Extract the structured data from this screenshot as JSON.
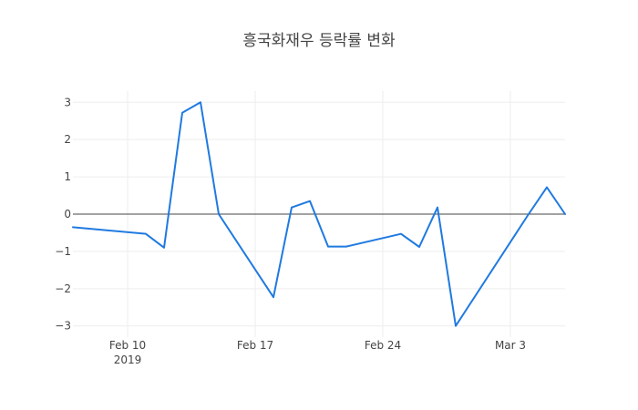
{
  "chart_data": {
    "type": "line",
    "title": "흥국화재우 등락률 변화",
    "xlabel": "",
    "ylabel": "",
    "x": [
      "2019-02-07",
      "2019-02-11",
      "2019-02-12",
      "2019-02-13",
      "2019-02-14",
      "2019-02-15",
      "2019-02-18",
      "2019-02-19",
      "2019-02-20",
      "2019-02-21",
      "2019-02-22",
      "2019-02-25",
      "2019-02-26",
      "2019-02-27",
      "2019-02-28",
      "2019-03-04",
      "2019-03-05",
      "2019-03-06"
    ],
    "series": [
      {
        "values": [
          -0.35,
          -0.53,
          -0.9,
          2.72,
          3.0,
          0.0,
          -2.23,
          0.18,
          0.35,
          -0.87,
          -0.87,
          -0.53,
          -0.88,
          0.18,
          -3.0,
          0.0,
          0.72,
          0.0
        ],
        "color": "#1f7ae0"
      }
    ],
    "xlim": [
      "2019-02-07",
      "2019-03-06"
    ],
    "ylim": [
      -3.3,
      3.3
    ],
    "x_ticks": [
      {
        "date": "2019-02-10",
        "label": "Feb 10",
        "sublabel": "2019"
      },
      {
        "date": "2019-02-17",
        "label": "Feb 17",
        "sublabel": ""
      },
      {
        "date": "2019-02-24",
        "label": "Feb 24",
        "sublabel": ""
      },
      {
        "date": "2019-03-03",
        "label": "Mar 3",
        "sublabel": ""
      }
    ],
    "y_ticks": [
      {
        "value": 3,
        "label": "3"
      },
      {
        "value": 2,
        "label": "2"
      },
      {
        "value": 1,
        "label": "1"
      },
      {
        "value": 0,
        "label": "0"
      },
      {
        "value": -1,
        "label": "−1"
      },
      {
        "value": -2,
        "label": "−2"
      },
      {
        "value": -3,
        "label": "−3"
      }
    ],
    "grid": true,
    "legend": "none"
  }
}
